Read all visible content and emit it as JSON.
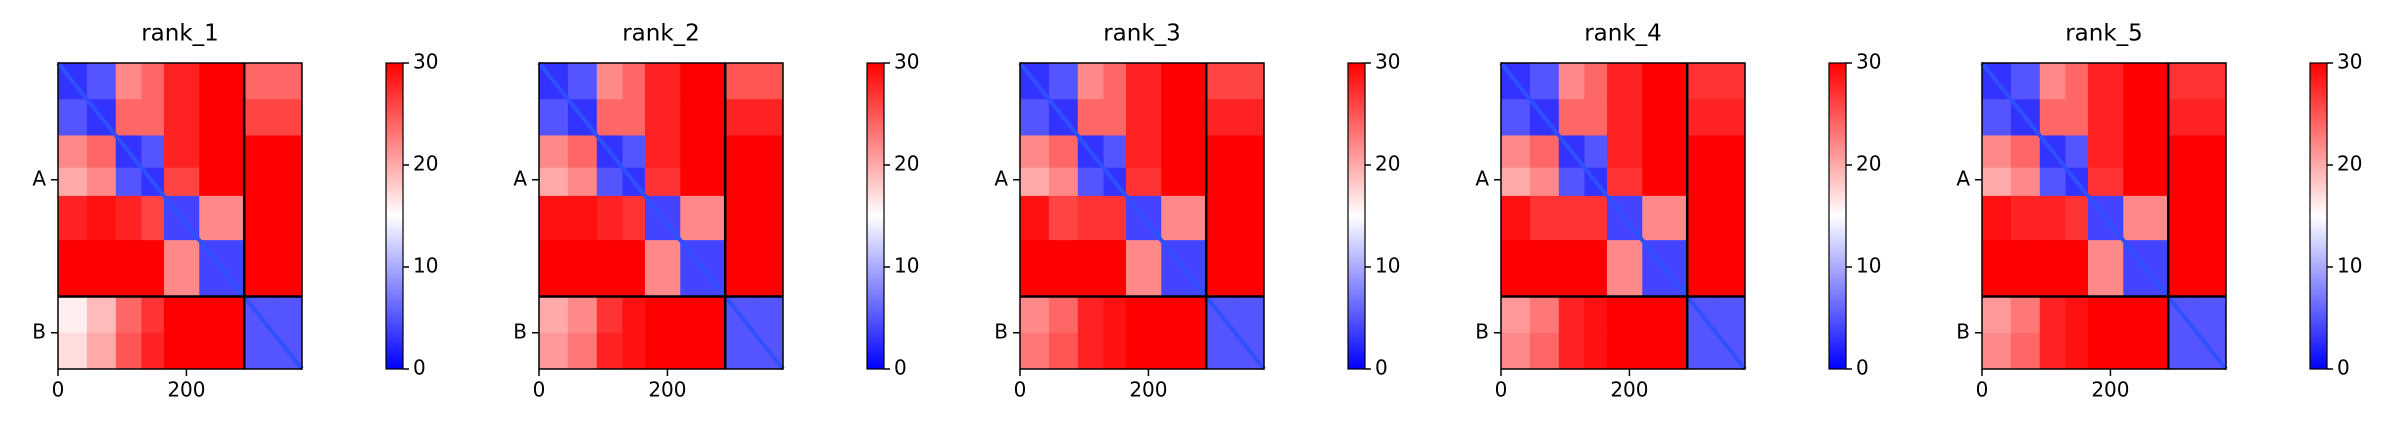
{
  "chart_data": [
    {
      "type": "heatmap",
      "title": "rank_1",
      "cmap": "bwr",
      "xlim": [
        0,
        380
      ],
      "ylim": [
        380,
        0
      ],
      "xticks": [
        0,
        200
      ],
      "yticks": [
        {
          "value": 145,
          "label": "A"
        },
        {
          "value": 335,
          "label": "B"
        }
      ],
      "chain_breaks": [
        290
      ],
      "edges": [
        0,
        45,
        90,
        130,
        165,
        220,
        290,
        335,
        380
      ],
      "clim": [
        0,
        30
      ],
      "cticks": [
        0,
        10,
        20,
        30
      ],
      "z": [
        [
          3,
          5,
          22,
          24,
          28,
          30,
          24,
          24
        ],
        [
          5,
          3,
          24,
          24,
          28,
          30,
          26,
          26
        ],
        [
          22,
          24,
          3,
          5,
          28,
          30,
          30,
          30
        ],
        [
          20,
          22,
          5,
          3,
          26,
          30,
          30,
          30
        ],
        [
          28,
          29,
          28,
          26,
          4,
          22,
          30,
          30
        ],
        [
          30,
          30,
          30,
          30,
          22,
          4,
          30,
          30
        ],
        [
          16,
          19,
          24,
          27,
          30,
          30,
          5,
          5
        ],
        [
          17,
          20,
          25,
          28,
          30,
          30,
          5,
          5
        ]
      ]
    },
    {
      "type": "heatmap",
      "title": "rank_2",
      "cmap": "bwr",
      "xlim": [
        0,
        380
      ],
      "ylim": [
        380,
        0
      ],
      "xticks": [
        0,
        200
      ],
      "yticks": [
        {
          "value": 145,
          "label": "A"
        },
        {
          "value": 335,
          "label": "B"
        }
      ],
      "chain_breaks": [
        290
      ],
      "edges": [
        0,
        45,
        90,
        130,
        165,
        220,
        290,
        335,
        380
      ],
      "clim": [
        0,
        30
      ],
      "cticks": [
        0,
        10,
        20,
        30
      ],
      "z": [
        [
          3,
          5,
          22,
          24,
          28,
          30,
          25,
          25
        ],
        [
          5,
          3,
          24,
          24,
          28,
          30,
          28,
          28
        ],
        [
          22,
          24,
          3,
          5,
          28,
          30,
          30,
          30
        ],
        [
          20,
          22,
          5,
          3,
          27,
          30,
          30,
          30
        ],
        [
          29,
          29,
          28,
          27,
          4,
          22,
          30,
          30
        ],
        [
          30,
          30,
          30,
          30,
          22,
          4,
          30,
          30
        ],
        [
          20,
          22,
          27,
          29,
          30,
          30,
          5,
          5
        ],
        [
          21,
          23,
          28,
          29,
          30,
          30,
          5,
          5
        ]
      ]
    },
    {
      "type": "heatmap",
      "title": "rank_3",
      "cmap": "bwr",
      "xlim": [
        0,
        380
      ],
      "ylim": [
        380,
        0
      ],
      "xticks": [
        0,
        200
      ],
      "yticks": [
        {
          "value": 145,
          "label": "A"
        },
        {
          "value": 335,
          "label": "B"
        }
      ],
      "chain_breaks": [
        290
      ],
      "edges": [
        0,
        45,
        90,
        130,
        165,
        220,
        290,
        335,
        380
      ],
      "clim": [
        0,
        30
      ],
      "cticks": [
        0,
        10,
        20,
        30
      ],
      "z": [
        [
          3,
          5,
          22,
          24,
          28,
          30,
          26,
          26
        ],
        [
          5,
          3,
          24,
          24,
          28,
          30,
          28,
          28
        ],
        [
          22,
          24,
          3,
          5,
          28,
          30,
          30,
          30
        ],
        [
          20,
          22,
          5,
          3,
          27,
          30,
          30,
          30
        ],
        [
          29,
          26,
          27,
          27,
          4,
          22,
          30,
          30
        ],
        [
          30,
          30,
          30,
          30,
          22,
          4,
          30,
          30
        ],
        [
          22,
          24,
          28,
          29,
          30,
          30,
          5,
          5
        ],
        [
          23,
          25,
          28,
          29,
          30,
          30,
          5,
          5
        ]
      ]
    },
    {
      "type": "heatmap",
      "title": "rank_4",
      "cmap": "bwr",
      "xlim": [
        0,
        380
      ],
      "ylim": [
        380,
        0
      ],
      "xticks": [
        0,
        200
      ],
      "yticks": [
        {
          "value": 145,
          "label": "A"
        },
        {
          "value": 335,
          "label": "B"
        }
      ],
      "chain_breaks": [
        290
      ],
      "edges": [
        0,
        45,
        90,
        130,
        165,
        220,
        290,
        335,
        380
      ],
      "clim": [
        0,
        30
      ],
      "cticks": [
        0,
        10,
        20,
        30
      ],
      "z": [
        [
          3,
          5,
          22,
          24,
          28,
          30,
          27,
          27
        ],
        [
          5,
          3,
          24,
          24,
          28,
          30,
          28,
          28
        ],
        [
          22,
          24,
          3,
          5,
          28,
          30,
          30,
          30
        ],
        [
          20,
          22,
          5,
          3,
          27,
          30,
          30,
          30
        ],
        [
          29,
          27,
          27,
          27,
          4,
          22,
          30,
          30
        ],
        [
          30,
          30,
          30,
          30,
          22,
          4,
          30,
          30
        ],
        [
          21,
          23,
          28,
          29,
          30,
          30,
          5,
          5
        ],
        [
          22,
          24,
          28,
          29,
          30,
          30,
          5,
          5
        ]
      ]
    },
    {
      "type": "heatmap",
      "title": "rank_5",
      "cmap": "bwr",
      "xlim": [
        0,
        380
      ],
      "ylim": [
        380,
        0
      ],
      "xticks": [
        0,
        200
      ],
      "yticks": [
        {
          "value": 145,
          "label": "A"
        },
        {
          "value": 335,
          "label": "B"
        }
      ],
      "chain_breaks": [
        290
      ],
      "edges": [
        0,
        45,
        90,
        130,
        165,
        220,
        290,
        335,
        380
      ],
      "clim": [
        0,
        30
      ],
      "cticks": [
        0,
        10,
        20,
        30
      ],
      "z": [
        [
          3,
          5,
          22,
          24,
          28,
          30,
          27,
          27
        ],
        [
          5,
          3,
          24,
          24,
          28,
          30,
          28,
          28
        ],
        [
          22,
          24,
          3,
          5,
          28,
          30,
          30,
          30
        ],
        [
          20,
          22,
          5,
          3,
          27,
          30,
          30,
          30
        ],
        [
          29,
          28,
          28,
          27,
          4,
          22,
          30,
          30
        ],
        [
          30,
          30,
          30,
          30,
          22,
          4,
          30,
          30
        ],
        [
          21,
          23,
          28,
          29,
          30,
          30,
          5,
          5
        ],
        [
          22,
          24,
          28,
          29,
          30,
          30,
          5,
          5
        ]
      ]
    }
  ]
}
